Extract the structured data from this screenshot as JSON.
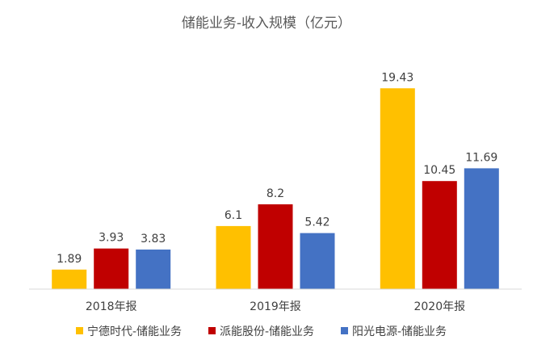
{
  "chart_data": {
    "type": "bar",
    "title": "储能业务-收入规模（亿元）",
    "categories": [
      "2018年报",
      "2019年报",
      "2020年报"
    ],
    "series": [
      {
        "name": "宁德时代-储能业务",
        "color": "#FFC000",
        "values": [
          1.89,
          6.1,
          19.43
        ]
      },
      {
        "name": "派能股份-储能业务",
        "color": "#C00000",
        "values": [
          3.93,
          8.2,
          10.45
        ]
      },
      {
        "name": "阳光电源-储能业务",
        "color": "#4472C4",
        "values": [
          3.83,
          5.42,
          11.69
        ]
      }
    ],
    "xlabel": "",
    "ylabel": "",
    "ylim": [
      0,
      20
    ],
    "grid": false,
    "legend_position": "bottom",
    "data_labels": true
  }
}
